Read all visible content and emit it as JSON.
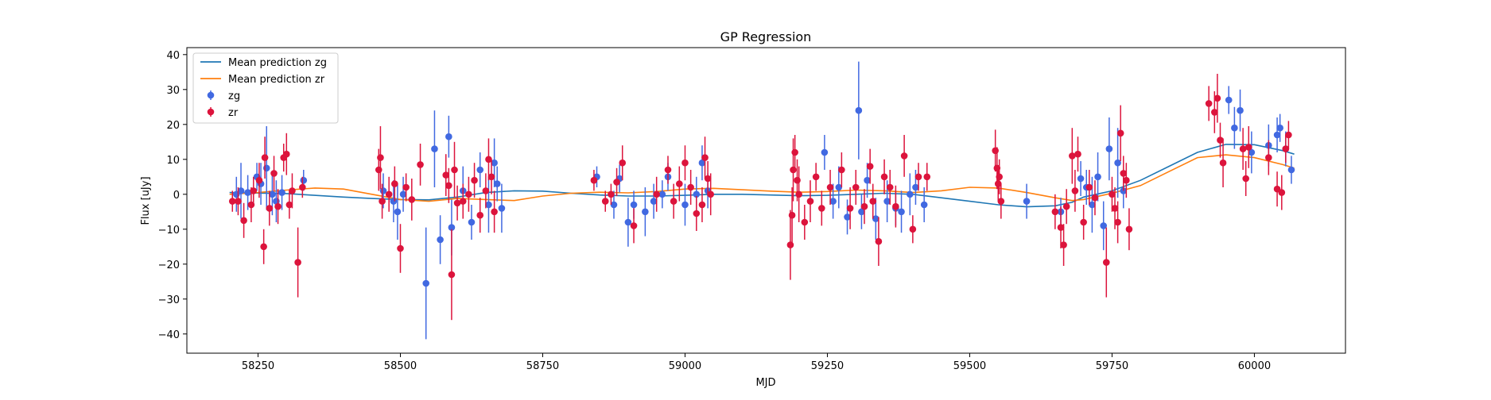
{
  "chart_data": {
    "type": "scatter",
    "title": "GP Regression",
    "xlabel": "MJD",
    "ylabel": "Flux [uJy]",
    "xlim": [
      58125,
      60160
    ],
    "ylim": [
      -45.5,
      42
    ],
    "xticks": [
      58250,
      58500,
      58750,
      59000,
      59250,
      59500,
      59750,
      60000
    ],
    "yticks": [
      -40,
      -30,
      -20,
      -10,
      0,
      10,
      20,
      30,
      40
    ],
    "grid": false,
    "legend_placement": "upper-left",
    "legend": [
      {
        "label": "Mean prediction zg",
        "kind": "line",
        "color": "#1f77b4"
      },
      {
        "label": "Mean prediction zr",
        "kind": "line",
        "color": "#ff7f0e"
      },
      {
        "label": "zg",
        "kind": "errorbar",
        "color": "#4169e1"
      },
      {
        "label": "zr",
        "kind": "errorbar",
        "color": "#dc143c"
      }
    ],
    "lines": [
      {
        "name": "Mean prediction zg",
        "color": "#1f77b4",
        "x": [
          58200,
          58300,
          58400,
          58450,
          58500,
          58550,
          58600,
          58650,
          58700,
          58750,
          58800,
          58850,
          58900,
          58950,
          59000,
          59050,
          59100,
          59150,
          59200,
          59250,
          59300,
          59350,
          59400,
          59450,
          59500,
          59550,
          59600,
          59650,
          59680,
          59700,
          59750,
          59800,
          59850,
          59900,
          59950,
          60000,
          60050,
          60070
        ],
        "y": [
          0.5,
          0.2,
          -0.8,
          -1.2,
          -1.5,
          -1.6,
          -0.8,
          0.5,
          1.0,
          0.9,
          0.3,
          -0.2,
          -0.5,
          -0.5,
          -0.3,
          0.0,
          0.0,
          -0.2,
          -0.4,
          -0.3,
          0.0,
          0.3,
          0.0,
          -1.0,
          -2.0,
          -3.0,
          -3.6,
          -3.3,
          -2.3,
          -0.8,
          1.0,
          4.0,
          8.0,
          12.0,
          14.3,
          14.2,
          12.5,
          11.5
        ]
      },
      {
        "name": "Mean prediction zr",
        "color": "#ff7f0e",
        "x": [
          58200,
          58250,
          58300,
          58350,
          58400,
          58450,
          58500,
          58550,
          58600,
          58650,
          58700,
          58750,
          58800,
          58850,
          58900,
          58950,
          59000,
          59050,
          59100,
          59150,
          59200,
          59250,
          59300,
          59350,
          59400,
          59450,
          59500,
          59550,
          59600,
          59650,
          59680,
          59700,
          59750,
          59800,
          59850,
          59900,
          59950,
          60000,
          60050,
          60070
        ],
        "y": [
          0.0,
          0.5,
          1.2,
          1.8,
          1.5,
          0.0,
          -1.5,
          -2.0,
          -1.2,
          -1.5,
          -1.8,
          -0.5,
          0.3,
          0.6,
          0.4,
          0.8,
          1.5,
          1.7,
          1.3,
          0.9,
          0.6,
          0.8,
          1.2,
          1.0,
          0.5,
          1.0,
          2.0,
          1.8,
          0.5,
          -1.0,
          -1.8,
          -1.5,
          0.3,
          2.5,
          6.5,
          10.5,
          11.3,
          10.5,
          8.5,
          7.5
        ]
      }
    ],
    "series": [
      {
        "name": "zg",
        "color": "#4169e1",
        "x": [
          58212,
          58220,
          58232,
          58248,
          58255,
          58265,
          58275,
          58282,
          58292,
          58330,
          58470,
          58488,
          58495,
          58505,
          58545,
          58560,
          58570,
          58585,
          58590,
          58610,
          58625,
          58640,
          58655,
          58665,
          58670,
          58678,
          58845,
          58875,
          58885,
          58900,
          58910,
          58930,
          58945,
          58960,
          58970,
          59000,
          59020,
          59030,
          59040,
          59245,
          59260,
          59270,
          59285,
          59305,
          59310,
          59320,
          59335,
          59355,
          59370,
          59380,
          59395,
          59405,
          59420,
          59600,
          59660,
          59695,
          59705,
          59715,
          59725,
          59735,
          59745,
          59760,
          59770,
          59955,
          59965,
          59975,
          59995,
          60025,
          60040,
          60045,
          60055,
          60065
        ],
        "y": [
          0.0,
          1.0,
          0.5,
          5.0,
          3.0,
          7.5,
          0.0,
          -2.0,
          0.5,
          4.0,
          1.0,
          -2.0,
          -5.0,
          0.0,
          -25.5,
          13.0,
          -13.0,
          16.5,
          -9.5,
          1.0,
          -8.0,
          7.0,
          -3.0,
          9.0,
          3.0,
          -4.0,
          5.0,
          -3.0,
          4.5,
          -8.0,
          -3.0,
          -5.0,
          -2.0,
          0.0,
          5.0,
          -3.0,
          0.0,
          9.0,
          1.0,
          12.0,
          -2.0,
          2.0,
          -6.5,
          24.0,
          -5.0,
          4.0,
          -7.0,
          -2.0,
          -4.0,
          -5.0,
          0.0,
          2.0,
          -3.0,
          -2.0,
          -5.0,
          4.5,
          2.0,
          -3.0,
          5.0,
          -9.0,
          13.0,
          9.0,
          1.0,
          27.0,
          19.0,
          24.0,
          12.0,
          14.0,
          17.0,
          19.0,
          13.0,
          7.0
        ],
        "yerr": [
          5,
          8,
          5,
          4,
          6,
          12,
          6,
          6,
          5,
          3,
          5,
          6,
          8,
          5,
          16,
          11,
          7,
          6,
          8,
          7,
          5,
          5,
          8,
          7,
          5,
          7,
          3,
          4,
          4,
          7,
          4,
          7,
          5,
          4,
          4,
          6,
          5,
          5,
          5,
          5,
          5,
          6,
          5,
          14,
          5,
          5,
          6,
          6,
          5,
          6,
          6,
          5,
          5,
          5,
          4,
          5,
          5,
          8,
          7,
          7,
          9,
          10,
          5,
          4,
          6,
          6,
          6,
          6,
          5,
          4,
          5,
          4
        ]
      },
      {
        "name": "zr",
        "color": "#dc143c",
        "x": [
          58205,
          58215,
          58225,
          58238,
          58242,
          58252,
          58260,
          58262,
          58270,
          58278,
          58285,
          58295,
          58300,
          58305,
          58310,
          58320,
          58328,
          58462,
          58465,
          58468,
          58480,
          58490,
          58500,
          58510,
          58520,
          58535,
          58580,
          58585,
          58590,
          58595,
          58600,
          58610,
          58620,
          58630,
          58640,
          58650,
          58655,
          58660,
          58665,
          58840,
          58860,
          58870,
          58880,
          58890,
          58910,
          58950,
          58970,
          58980,
          58990,
          59000,
          59010,
          59020,
          59030,
          59035,
          59040,
          59045,
          59185,
          59188,
          59190,
          59193,
          59197,
          59200,
          59210,
          59220,
          59230,
          59240,
          59255,
          59275,
          59290,
          59300,
          59315,
          59325,
          59330,
          59340,
          59350,
          59360,
          59370,
          59385,
          59400,
          59410,
          59425,
          59545,
          59548,
          59550,
          59552,
          59555,
          59650,
          59660,
          59665,
          59670,
          59680,
          59685,
          59690,
          59700,
          59710,
          59720,
          59740,
          59750,
          59755,
          59760,
          59765,
          59770,
          59775,
          59780,
          59920,
          59930,
          59935,
          59940,
          59945,
          59980,
          59985,
          59990,
          60025,
          60040,
          60048,
          60055,
          60060
        ],
        "y": [
          -2.0,
          -2.0,
          -7.5,
          -3.0,
          1.0,
          4.0,
          -15.0,
          10.5,
          -4.0,
          6.0,
          -3.5,
          10.5,
          11.5,
          -3.0,
          1.0,
          -19.5,
          2.0,
          7.0,
          10.5,
          -2.0,
          0.0,
          3.0,
          -15.5,
          2.0,
          -1.5,
          8.5,
          5.5,
          2.5,
          -23.0,
          7.0,
          -2.5,
          -2.0,
          0.0,
          4.0,
          -6.0,
          1.0,
          10.0,
          5.0,
          -5.0,
          4.0,
          -2.0,
          0.0,
          3.5,
          9.0,
          -9.0,
          0.0,
          7.0,
          -2.0,
          3.0,
          9.0,
          2.0,
          -5.5,
          -3.0,
          10.5,
          4.5,
          0.0,
          -14.5,
          -6.0,
          7.0,
          12.0,
          4.0,
          0.0,
          -8.0,
          -2.0,
          5.0,
          -4.0,
          2.0,
          7.0,
          -4.0,
          2.0,
          -3.5,
          8.0,
          -2.0,
          -13.5,
          5.0,
          2.0,
          -3.5,
          11.0,
          -10.0,
          5.0,
          5.0,
          12.5,
          7.5,
          3.0,
          5.0,
          -2.0,
          -5.0,
          -9.5,
          -14.5,
          -3.5,
          11.0,
          1.0,
          11.5,
          -8.0,
          2.0,
          -1.0,
          -19.5,
          0.0,
          -4.0,
          -8.0,
          17.5,
          6.0,
          4.0,
          -10.0,
          26.0,
          23.5,
          27.5,
          15.5,
          9.0,
          13.0,
          4.5,
          13.5,
          10.5,
          1.5,
          0.5,
          13.0,
          17.0
        ],
        "yerr": [
          3,
          4,
          5,
          5,
          4,
          5,
          5,
          6,
          5,
          5,
          5,
          4,
          6,
          4,
          5,
          10,
          3,
          6,
          9,
          5,
          5,
          5,
          7,
          4,
          6,
          6,
          6,
          5,
          13,
          8,
          5,
          5,
          5,
          5,
          5,
          5,
          6,
          5,
          6,
          3,
          3,
          3,
          4,
          5,
          5,
          5,
          4,
          5,
          5,
          5,
          5,
          5,
          5,
          6,
          5,
          6,
          10,
          8,
          9,
          5,
          6,
          8,
          5,
          6,
          4,
          5,
          5,
          5,
          6,
          5,
          5,
          5,
          5,
          7,
          5,
          5,
          6,
          6,
          4,
          4,
          4,
          6,
          6,
          5,
          5,
          5,
          5,
          6,
          6,
          5,
          8,
          6,
          5,
          5,
          5,
          5,
          10,
          5,
          6,
          6,
          8,
          5,
          5,
          6,
          5,
          6,
          7,
          5,
          7,
          6,
          5,
          6,
          5,
          5,
          5,
          4,
          4
        ]
      }
    ]
  }
}
